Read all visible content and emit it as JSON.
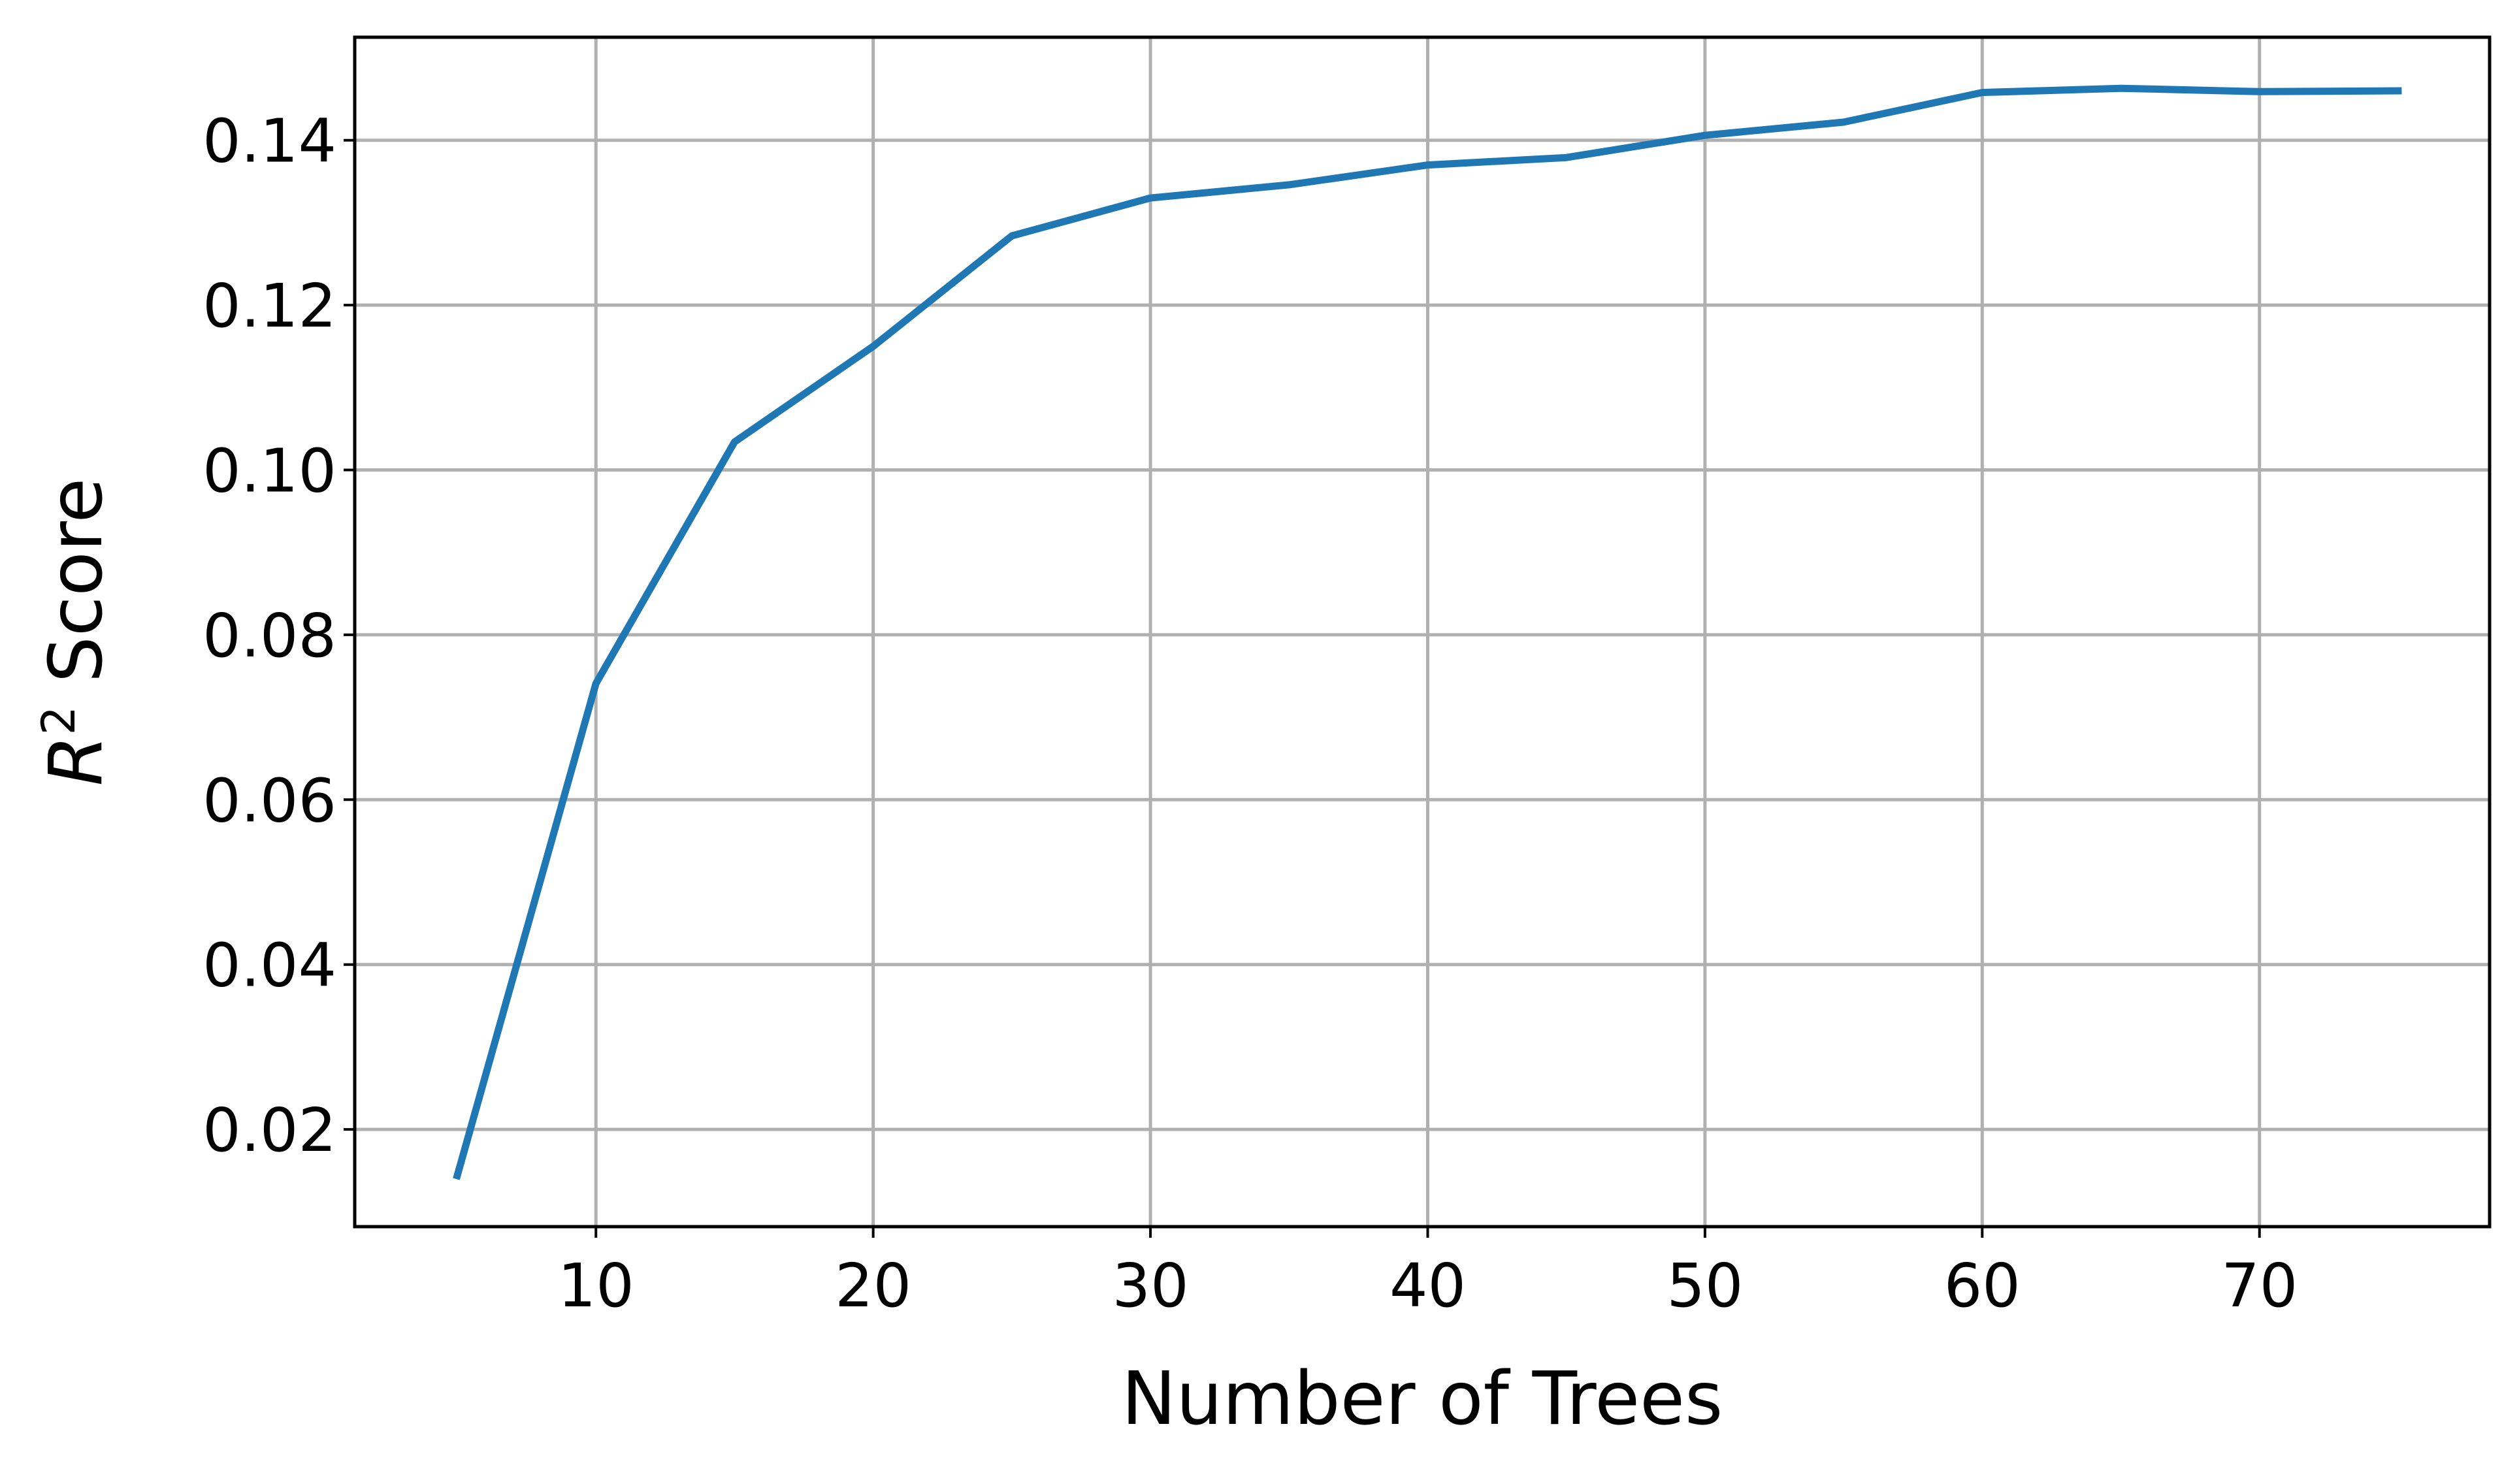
{
  "chart_data": {
    "type": "line",
    "title": "",
    "xlabel": "Number of Trees",
    "ylabel_base": "R",
    "ylabel_superscript": "2",
    "ylabel_rest": " Score",
    "xlim": [
      1.3,
      78.3
    ],
    "ylim": [
      0.0082,
      0.1525
    ],
    "xticks": [
      10,
      20,
      30,
      40,
      50,
      60,
      70
    ],
    "xtick_labels": [
      "10",
      "20",
      "30",
      "40",
      "50",
      "60",
      "70"
    ],
    "yticks": [
      0.02,
      0.04,
      0.06,
      0.08,
      0.1,
      0.12,
      0.14
    ],
    "ytick_labels": [
      "0.02",
      "0.04",
      "0.06",
      "0.08",
      "0.10",
      "0.12",
      "0.14"
    ],
    "grid": true,
    "line_color": "#1f77b4",
    "series": [
      {
        "x": [
          5,
          10,
          15,
          20,
          25,
          30,
          35,
          40,
          45,
          50,
          55,
          60,
          65,
          70,
          75
        ],
        "values": [
          0.0144,
          0.0741,
          0.1034,
          0.115,
          0.1284,
          0.133,
          0.1346,
          0.137,
          0.1379,
          0.1406,
          0.1422,
          0.1458,
          0.1463,
          0.1459,
          0.146
        ]
      }
    ]
  }
}
